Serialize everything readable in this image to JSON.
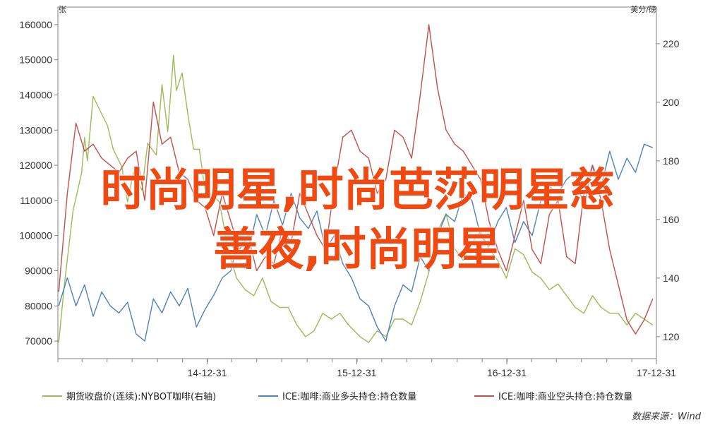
{
  "chart_data": {
    "type": "line",
    "left_axis_unit": "张",
    "right_axis_unit": "美分/磅",
    "y_left_ticks": [
      "160000",
      "150000",
      "140000",
      "130000",
      "120000",
      "110000",
      "100000",
      "90000",
      "80000",
      "70000"
    ],
    "y_left_range": [
      65000,
      165000
    ],
    "y_right_ticks": [
      "220",
      "200",
      "180",
      "160",
      "140",
      "120"
    ],
    "y_right_range": [
      112.5,
      232.5
    ],
    "x_ticks": [
      "14-12-31",
      "15-12-31",
      "16-12-31",
      "17-12-31"
    ],
    "x_range": [
      "2014-01-01",
      "2017-12-31"
    ],
    "series": [
      {
        "name": "期货收盘价(连续):NYBOT咖啡(右轴)",
        "axis": "right",
        "color": "#9cbb59",
        "x": [
          "2014-01-03",
          "2014-01-17",
          "2014-02-07",
          "2014-02-28",
          "2014-03-07",
          "2014-03-14",
          "2014-03-28",
          "2014-04-18",
          "2014-05-02",
          "2014-05-16",
          "2014-06-06",
          "2014-06-20",
          "2014-07-04",
          "2014-07-25",
          "2014-08-08",
          "2014-08-29",
          "2014-09-12",
          "2014-09-26",
          "2014-10-10",
          "2014-10-17",
          "2014-10-31",
          "2014-11-14",
          "2014-11-28",
          "2014-12-12",
          "2014-12-26",
          "2015-01-16",
          "2015-01-30",
          "2015-02-20",
          "2015-03-13",
          "2015-04-03",
          "2015-04-24",
          "2015-05-15",
          "2015-06-05",
          "2015-06-26",
          "2015-07-17",
          "2015-08-07",
          "2015-08-28",
          "2015-09-18",
          "2015-10-09",
          "2015-10-30",
          "2015-11-20",
          "2015-12-11",
          "2016-01-08",
          "2016-01-29",
          "2016-02-19",
          "2016-03-11",
          "2016-04-01",
          "2016-04-22",
          "2016-05-13",
          "2016-06-03",
          "2016-06-24",
          "2016-07-15",
          "2016-08-05",
          "2016-08-26",
          "2016-09-16",
          "2016-10-07",
          "2016-10-28",
          "2016-11-18",
          "2016-12-09",
          "2016-12-30",
          "2017-01-20",
          "2017-02-10",
          "2017-03-03",
          "2017-03-24",
          "2017-04-14",
          "2017-05-05",
          "2017-05-26",
          "2017-06-16",
          "2017-07-07",
          "2017-07-28",
          "2017-08-18",
          "2017-09-08",
          "2017-09-29",
          "2017-10-20",
          "2017-11-10",
          "2017-12-01",
          "2017-12-22"
        ],
        "values": [
          118,
          138,
          163,
          176,
          188,
          180,
          202,
          196,
          192,
          184,
          178,
          166,
          176,
          170,
          186,
          182,
          206,
          190,
          216,
          204,
          210,
          196,
          184,
          184,
          170,
          168,
          166,
          150,
          140,
          136,
          134,
          140,
          132,
          130,
          130,
          124,
          120,
          122,
          128,
          126,
          128,
          124,
          120,
          118,
          122,
          120,
          126,
          126,
          124,
          132,
          142,
          156,
          162,
          150,
          146,
          152,
          156,
          150,
          146,
          140,
          150,
          148,
          142,
          140,
          136,
          138,
          134,
          130,
          128,
          134,
          130,
          128,
          128,
          124,
          128,
          126,
          124
        ]
      },
      {
        "name": "ICE:咖啡:商业多头持仓:持仓数量",
        "axis": "left",
        "color": "#4f81bd",
        "x": [
          "2014-01-03",
          "2014-01-24",
          "2014-02-14",
          "2014-03-07",
          "2014-03-28",
          "2014-04-18",
          "2014-05-09",
          "2014-05-30",
          "2014-06-20",
          "2014-07-11",
          "2014-08-01",
          "2014-08-22",
          "2014-09-12",
          "2014-10-03",
          "2014-10-24",
          "2014-11-14",
          "2014-12-05",
          "2014-12-26",
          "2015-01-16",
          "2015-02-06",
          "2015-02-27",
          "2015-03-20",
          "2015-04-10",
          "2015-05-01",
          "2015-05-22",
          "2015-06-12",
          "2015-07-03",
          "2015-07-24",
          "2015-08-14",
          "2015-09-04",
          "2015-09-25",
          "2015-10-16",
          "2015-11-06",
          "2015-11-27",
          "2015-12-18",
          "2016-01-08",
          "2016-01-29",
          "2016-02-19",
          "2016-03-11",
          "2016-04-01",
          "2016-04-22",
          "2016-05-13",
          "2016-06-03",
          "2016-06-24",
          "2016-07-15",
          "2016-08-05",
          "2016-08-26",
          "2016-09-16",
          "2016-10-07",
          "2016-10-28",
          "2016-11-18",
          "2016-12-09",
          "2016-12-30",
          "2017-01-20",
          "2017-02-10",
          "2017-03-03",
          "2017-03-24",
          "2017-04-14",
          "2017-05-05",
          "2017-05-26",
          "2017-06-16",
          "2017-07-07",
          "2017-07-28",
          "2017-08-18",
          "2017-09-08",
          "2017-09-29",
          "2017-10-20",
          "2017-11-10",
          "2017-12-01",
          "2017-12-22"
        ],
        "values": [
          80000,
          88000,
          80000,
          86000,
          77000,
          84000,
          80000,
          78000,
          81000,
          72000,
          70000,
          82000,
          78000,
          84000,
          80000,
          85000,
          74000,
          79000,
          83000,
          88000,
          90000,
          100000,
          95000,
          106000,
          100000,
          110000,
          103000,
          112000,
          105000,
          102000,
          107000,
          96000,
          100000,
          92000,
          88000,
          82000,
          80000,
          74000,
          70000,
          80000,
          86000,
          84000,
          94000,
          90000,
          100000,
          106000,
          104000,
          112000,
          110000,
          100000,
          97000,
          104000,
          108000,
          98000,
          104000,
          100000,
          110000,
          114000,
          112000,
          116000,
          118000,
          108000,
          120000,
          114000,
          124000,
          116000,
          122000,
          118000,
          126000,
          125000
        ]
      },
      {
        "name": "ICE:咖啡:商业空头持仓:持仓数量",
        "axis": "left",
        "color": "#c0504d",
        "x": [
          "2014-01-03",
          "2014-01-24",
          "2014-02-14",
          "2014-03-07",
          "2014-03-28",
          "2014-04-18",
          "2014-05-09",
          "2014-05-30",
          "2014-06-20",
          "2014-07-11",
          "2014-08-01",
          "2014-08-22",
          "2014-09-12",
          "2014-10-03",
          "2014-10-24",
          "2014-11-14",
          "2014-12-05",
          "2014-12-26",
          "2015-01-16",
          "2015-02-06",
          "2015-02-27",
          "2015-03-20",
          "2015-04-10",
          "2015-05-01",
          "2015-05-22",
          "2015-06-12",
          "2015-07-03",
          "2015-07-24",
          "2015-08-14",
          "2015-09-04",
          "2015-09-25",
          "2015-10-16",
          "2015-11-06",
          "2015-11-27",
          "2015-12-18",
          "2016-01-08",
          "2016-01-29",
          "2016-02-19",
          "2016-03-11",
          "2016-04-01",
          "2016-04-22",
          "2016-05-13",
          "2016-06-03",
          "2016-06-24",
          "2016-07-15",
          "2016-08-05",
          "2016-08-26",
          "2016-09-16",
          "2016-10-07",
          "2016-10-28",
          "2016-11-18",
          "2016-12-09",
          "2016-12-30",
          "2017-01-20",
          "2017-02-10",
          "2017-03-03",
          "2017-03-24",
          "2017-04-14",
          "2017-05-05",
          "2017-05-26",
          "2017-06-16",
          "2017-07-07",
          "2017-07-28",
          "2017-08-18",
          "2017-09-08",
          "2017-09-29",
          "2017-10-20",
          "2017-11-10",
          "2017-12-01",
          "2017-12-22"
        ],
        "values": [
          84000,
          112000,
          132000,
          124000,
          126000,
          122000,
          120000,
          118000,
          122000,
          124000,
          110000,
          138000,
          126000,
          128000,
          118000,
          116000,
          110000,
          108000,
          100000,
          112000,
          104000,
          96000,
          100000,
          90000,
          94000,
          92000,
          102000,
          98000,
          112000,
          106000,
          100000,
          96000,
          114000,
          128000,
          130000,
          124000,
          122000,
          112000,
          116000,
          130000,
          128000,
          122000,
          140000,
          160000,
          142000,
          130000,
          126000,
          124000,
          120000,
          116000,
          104000,
          96000,
          90000,
          100000,
          110000,
          96000,
          92000,
          106000,
          110000,
          94000,
          92000,
          112000,
          120000,
          110000,
          96000,
          86000,
          76000,
          72000,
          76000,
          82000
        ]
      }
    ]
  },
  "overlay_text": {
    "line1": "时尚明星,时尚芭莎明星慈",
    "line2": "善夜,时尚明星"
  },
  "source": "数据来源：Wind"
}
